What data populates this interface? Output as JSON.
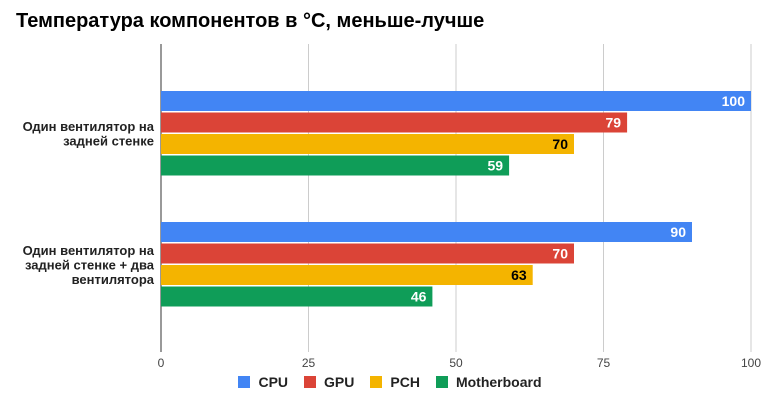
{
  "chart_data": {
    "type": "bar",
    "orientation": "horizontal",
    "title": "Температура компонентов в °С, меньше-лучше",
    "categories": [
      [
        "Один вентилятор на",
        "задней стенке"
      ],
      [
        "Один вентилятор на",
        "задней стенке + два",
        "вентилятора"
      ]
    ],
    "series": [
      {
        "name": "CPU",
        "color": "#4285f4",
        "values": [
          100,
          90
        ],
        "label_color": "#ffffff"
      },
      {
        "name": "GPU",
        "color": "#db4437",
        "values": [
          79,
          70
        ],
        "label_color": "#ffffff"
      },
      {
        "name": "PCH",
        "color": "#f4b400",
        "values": [
          70,
          63
        ],
        "label_color": "#000000"
      },
      {
        "name": "Motherboard",
        "color": "#0f9d58",
        "values": [
          59,
          46
        ],
        "label_color": "#ffffff"
      }
    ],
    "xlim": [
      0,
      100
    ],
    "xticks": [
      0,
      25,
      50,
      75,
      100
    ],
    "grid": true,
    "legend_position": "bottom"
  }
}
